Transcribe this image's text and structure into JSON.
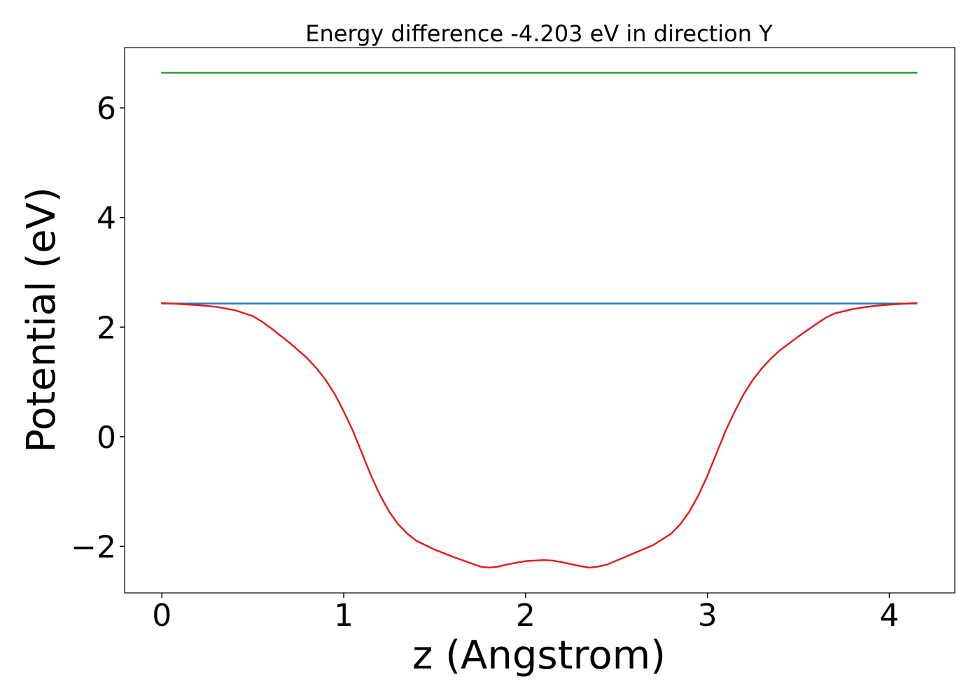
{
  "chart_data": {
    "type": "line",
    "title": "Energy difference -4.203 eV in direction Y",
    "xlabel": "z (Angstrom)",
    "ylabel": "Potential (eV)",
    "xlim": [
      -0.205,
      4.36
    ],
    "ylim": [
      -2.85,
      7.1
    ],
    "xticks": [
      0,
      1,
      2,
      3,
      4
    ],
    "yticks": [
      -2,
      0,
      2,
      4,
      6
    ],
    "xtick_labels": [
      "0",
      "1",
      "2",
      "3",
      "4"
    ],
    "ytick_labels": [
      "−2",
      "0",
      "2",
      "4",
      "6"
    ],
    "grid": false,
    "legend": "none",
    "series": [
      {
        "color": "#2ca02c",
        "x": [
          0,
          4.15
        ],
        "y": [
          6.64,
          6.64
        ]
      },
      {
        "color": "#1f77b4",
        "x": [
          0,
          4.15
        ],
        "y": [
          2.43,
          2.43
        ]
      },
      {
        "color": "#e31a1c",
        "x": [
          0,
          0.1,
          0.2,
          0.3,
          0.4,
          0.5,
          0.55,
          0.6,
          0.7,
          0.8,
          0.85,
          0.9,
          0.95,
          1.0,
          1.05,
          1.1,
          1.15,
          1.2,
          1.25,
          1.3,
          1.35,
          1.4,
          1.5,
          1.6,
          1.7,
          1.75,
          1.8,
          1.85,
          1.9,
          2.0,
          2.05,
          2.1,
          2.15,
          2.2,
          2.3,
          2.35,
          2.4,
          2.45,
          2.5,
          2.6,
          2.7,
          2.8,
          2.85,
          2.9,
          2.95,
          3.0,
          3.05,
          3.1,
          3.15,
          3.2,
          3.25,
          3.3,
          3.35,
          3.4,
          3.5,
          3.6,
          3.65,
          3.7,
          3.8,
          3.9,
          4.0,
          4.1,
          4.15
        ],
        "y": [
          2.44,
          2.42,
          2.4,
          2.37,
          2.31,
          2.2,
          2.1,
          1.98,
          1.72,
          1.43,
          1.25,
          1.04,
          0.78,
          0.46,
          0.11,
          -0.3,
          -0.71,
          -1.07,
          -1.37,
          -1.6,
          -1.77,
          -1.9,
          -2.06,
          -2.19,
          -2.31,
          -2.37,
          -2.39,
          -2.37,
          -2.33,
          -2.27,
          -2.26,
          -2.25,
          -2.26,
          -2.29,
          -2.36,
          -2.39,
          -2.37,
          -2.33,
          -2.26,
          -2.12,
          -1.98,
          -1.77,
          -1.6,
          -1.37,
          -1.07,
          -0.71,
          -0.3,
          0.11,
          0.46,
          0.78,
          1.04,
          1.25,
          1.43,
          1.58,
          1.83,
          2.06,
          2.17,
          2.25,
          2.33,
          2.38,
          2.41,
          2.43,
          2.44
        ]
      }
    ]
  }
}
